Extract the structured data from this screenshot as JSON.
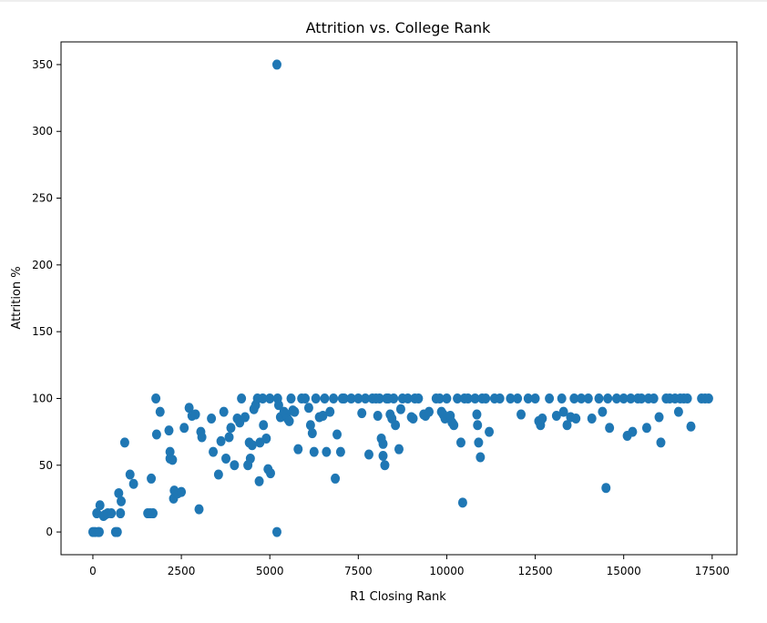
{
  "chart_data": {
    "type": "scatter",
    "title": "Attrition vs. College Rank",
    "xlabel": "R1 Closing Rank",
    "ylabel": "Attrition %",
    "xlim": [
      -900,
      18200
    ],
    "ylim": [
      -17,
      367
    ],
    "xticks": [
      0,
      2500,
      5000,
      7500,
      10000,
      12500,
      15000,
      17500
    ],
    "xtick_labels": [
      "0",
      "2500",
      "5000",
      "7500",
      "10000",
      "12500",
      "15000",
      "17500"
    ],
    "yticks": [
      0,
      50,
      100,
      150,
      200,
      250,
      300,
      350
    ],
    "ytick_labels": [
      "0",
      "50",
      "100",
      "150",
      "200",
      "250",
      "300",
      "350"
    ],
    "grid": false,
    "marker_color": "#1f77b4",
    "series": [
      {
        "points": [
          [
            0,
            0
          ],
          [
            60,
            0
          ],
          [
            150,
            0
          ],
          [
            180,
            0
          ],
          [
            200,
            20
          ],
          [
            110,
            14
          ],
          [
            300,
            12
          ],
          [
            350,
            13
          ],
          [
            420,
            14
          ],
          [
            520,
            14
          ],
          [
            640,
            0
          ],
          [
            690,
            0
          ],
          [
            730,
            29
          ],
          [
            780,
            14
          ],
          [
            800,
            23
          ],
          [
            900,
            67
          ],
          [
            1050,
            43
          ],
          [
            1150,
            36
          ],
          [
            1550,
            14
          ],
          [
            1620,
            14
          ],
          [
            1650,
            40
          ],
          [
            1700,
            14
          ],
          [
            1780,
            100
          ],
          [
            1800,
            73
          ],
          [
            1900,
            90
          ],
          [
            2150,
            76
          ],
          [
            2180,
            55
          ],
          [
            2180,
            60
          ],
          [
            2250,
            54
          ],
          [
            2280,
            25
          ],
          [
            2300,
            31
          ],
          [
            2400,
            29
          ],
          [
            2500,
            30
          ],
          [
            2580,
            78
          ],
          [
            2720,
            93
          ],
          [
            2800,
            87
          ],
          [
            2900,
            88
          ],
          [
            3000,
            17
          ],
          [
            3050,
            75
          ],
          [
            3080,
            71
          ],
          [
            3350,
            85
          ],
          [
            3400,
            60
          ],
          [
            3550,
            43
          ],
          [
            3620,
            68
          ],
          [
            3700,
            90
          ],
          [
            3760,
            55
          ],
          [
            3850,
            71
          ],
          [
            3900,
            78
          ],
          [
            4000,
            50
          ],
          [
            4080,
            85
          ],
          [
            4150,
            82
          ],
          [
            4200,
            100
          ],
          [
            4300,
            86
          ],
          [
            4380,
            50
          ],
          [
            4420,
            67
          ],
          [
            4450,
            55
          ],
          [
            4500,
            65
          ],
          [
            4550,
            92
          ],
          [
            4600,
            95
          ],
          [
            4650,
            100
          ],
          [
            4700,
            38
          ],
          [
            4720,
            67
          ],
          [
            4800,
            100
          ],
          [
            4820,
            80
          ],
          [
            4900,
            70
          ],
          [
            4950,
            47
          ],
          [
            5000,
            100
          ],
          [
            5020,
            44
          ],
          [
            5200,
            350
          ],
          [
            5200,
            0
          ],
          [
            5220,
            100
          ],
          [
            5250,
            95
          ],
          [
            5300,
            86
          ],
          [
            5400,
            90
          ],
          [
            5450,
            88
          ],
          [
            5500,
            85
          ],
          [
            5550,
            83
          ],
          [
            5600,
            100
          ],
          [
            5650,
            91
          ],
          [
            5700,
            90
          ],
          [
            5800,
            62
          ],
          [
            5900,
            100
          ],
          [
            6000,
            100
          ],
          [
            6100,
            93
          ],
          [
            6150,
            80
          ],
          [
            6200,
            74
          ],
          [
            6250,
            60
          ],
          [
            6300,
            100
          ],
          [
            6400,
            86
          ],
          [
            6500,
            87
          ],
          [
            6550,
            100
          ],
          [
            6600,
            60
          ],
          [
            6700,
            90
          ],
          [
            6800,
            100
          ],
          [
            6850,
            40
          ],
          [
            6900,
            73
          ],
          [
            7000,
            60
          ],
          [
            7050,
            100
          ],
          [
            7100,
            100
          ],
          [
            7300,
            100
          ],
          [
            7500,
            100
          ],
          [
            7600,
            89
          ],
          [
            7700,
            100
          ],
          [
            7800,
            58
          ],
          [
            7900,
            100
          ],
          [
            8000,
            100
          ],
          [
            8050,
            87
          ],
          [
            8100,
            100
          ],
          [
            8150,
            70
          ],
          [
            8200,
            66
          ],
          [
            8200,
            57
          ],
          [
            8250,
            50
          ],
          [
            8300,
            100
          ],
          [
            8350,
            100
          ],
          [
            8400,
            88
          ],
          [
            8450,
            85
          ],
          [
            8500,
            100
          ],
          [
            8550,
            80
          ],
          [
            8650,
            62
          ],
          [
            8700,
            92
          ],
          [
            8750,
            100
          ],
          [
            8900,
            100
          ],
          [
            9000,
            86
          ],
          [
            9050,
            85
          ],
          [
            9100,
            100
          ],
          [
            9200,
            100
          ],
          [
            9350,
            88
          ],
          [
            9400,
            87
          ],
          [
            9500,
            90
          ],
          [
            9700,
            100
          ],
          [
            9800,
            100
          ],
          [
            9850,
            90
          ],
          [
            9900,
            88
          ],
          [
            9950,
            85
          ],
          [
            10000,
            100
          ],
          [
            10100,
            87
          ],
          [
            10150,
            82
          ],
          [
            10200,
            80
          ],
          [
            10300,
            100
          ],
          [
            10400,
            67
          ],
          [
            10450,
            22
          ],
          [
            10500,
            100
          ],
          [
            10600,
            100
          ],
          [
            10800,
            100
          ],
          [
            10850,
            88
          ],
          [
            10870,
            80
          ],
          [
            10900,
            67
          ],
          [
            10950,
            56
          ],
          [
            11000,
            100
          ],
          [
            11100,
            100
          ],
          [
            11200,
            75
          ],
          [
            11350,
            100
          ],
          [
            11500,
            100
          ],
          [
            11800,
            100
          ],
          [
            12000,
            100
          ],
          [
            12100,
            88
          ],
          [
            12300,
            100
          ],
          [
            12500,
            100
          ],
          [
            12600,
            83
          ],
          [
            12650,
            80
          ],
          [
            12700,
            85
          ],
          [
            12900,
            100
          ],
          [
            13100,
            87
          ],
          [
            13250,
            100
          ],
          [
            13300,
            90
          ],
          [
            13400,
            80
          ],
          [
            13500,
            86
          ],
          [
            13600,
            100
          ],
          [
            13650,
            85
          ],
          [
            13800,
            100
          ],
          [
            14000,
            100
          ],
          [
            14100,
            85
          ],
          [
            14300,
            100
          ],
          [
            14400,
            90
          ],
          [
            14500,
            33
          ],
          [
            14550,
            100
          ],
          [
            14600,
            78
          ],
          [
            14800,
            100
          ],
          [
            15000,
            100
          ],
          [
            15100,
            72
          ],
          [
            15200,
            100
          ],
          [
            15250,
            75
          ],
          [
            15400,
            100
          ],
          [
            15500,
            100
          ],
          [
            15650,
            78
          ],
          [
            15700,
            100
          ],
          [
            15850,
            100
          ],
          [
            16000,
            86
          ],
          [
            16050,
            67
          ],
          [
            16200,
            100
          ],
          [
            16300,
            100
          ],
          [
            16450,
            100
          ],
          [
            16550,
            90
          ],
          [
            16600,
            100
          ],
          [
            16700,
            100
          ],
          [
            16800,
            100
          ],
          [
            16900,
            79
          ],
          [
            17200,
            100
          ],
          [
            17300,
            100
          ],
          [
            17400,
            100
          ]
        ]
      }
    ]
  }
}
